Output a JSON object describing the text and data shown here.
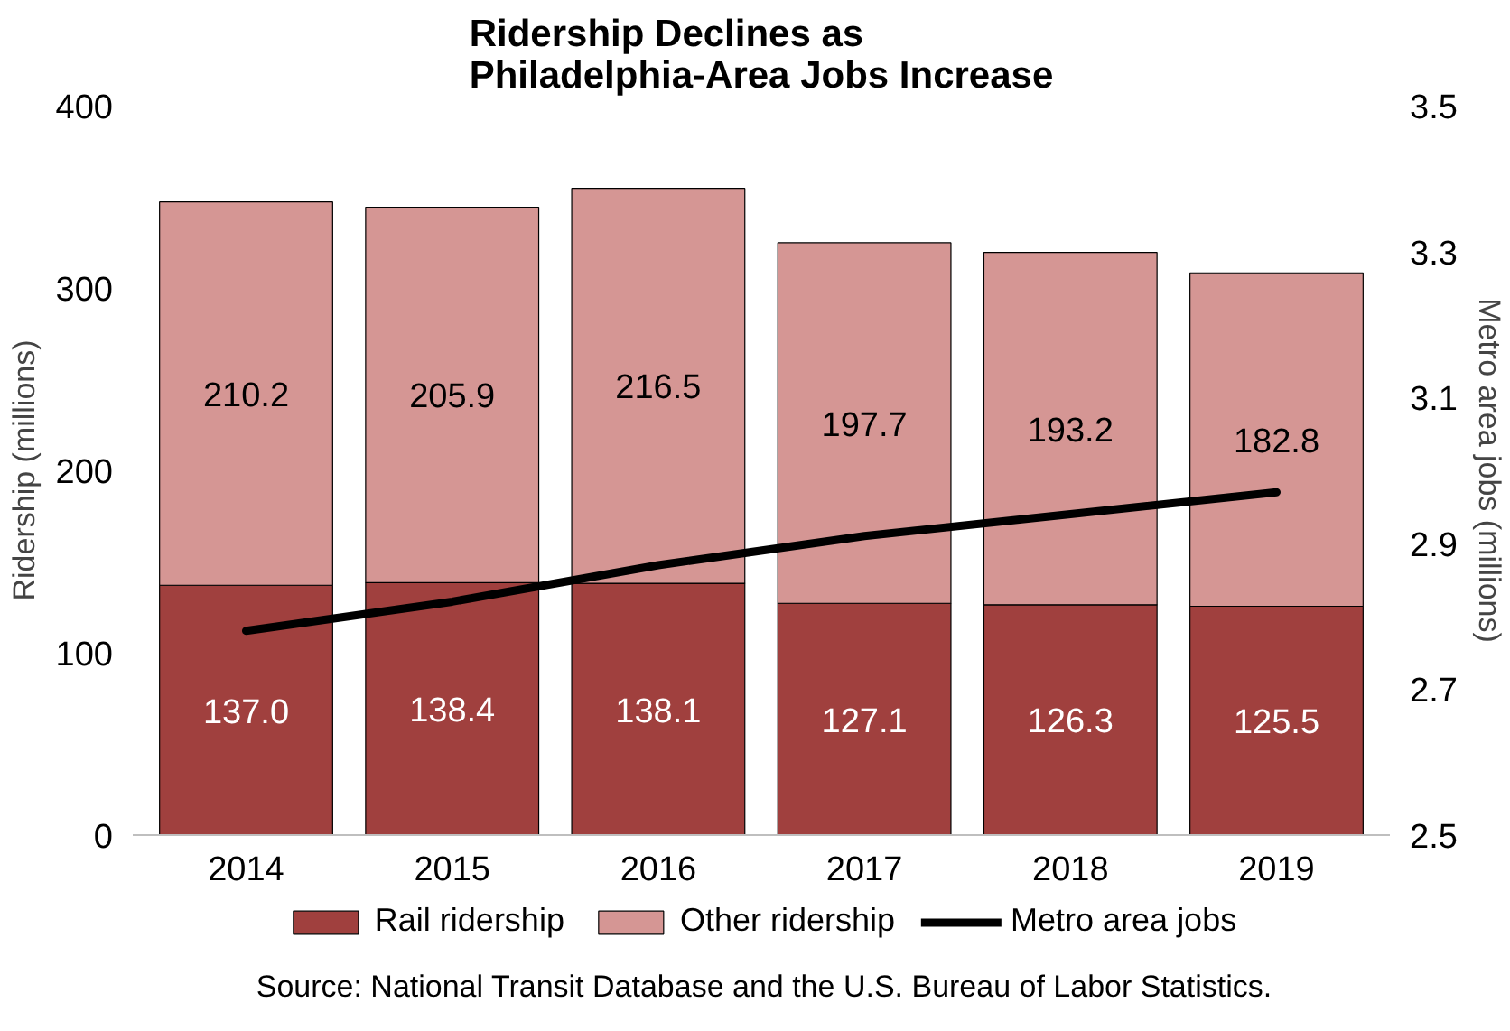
{
  "chart_data": {
    "type": "bar",
    "stacked": true,
    "title": "Ridership Declines as\nPhiladelphia-Area Jobs Increase",
    "ylabel": "Ridership (millions)",
    "y2label": "Metro area jobs (millions)",
    "categories": [
      "2014",
      "2015",
      "2016",
      "2017",
      "2018",
      "2019"
    ],
    "series": [
      {
        "name": "Rail ridership",
        "color": "#a0403e",
        "values": [
          137.0,
          138.4,
          138.1,
          127.1,
          126.3,
          125.5
        ],
        "value_labels": [
          "137.0",
          "138.4",
          "138.1",
          "127.1",
          "126.3",
          "125.5"
        ]
      },
      {
        "name": "Other ridership",
        "color": "#d59694",
        "values": [
          210.2,
          205.9,
          216.5,
          197.7,
          193.2,
          182.8
        ],
        "value_labels": [
          "210.2",
          "205.9",
          "216.5",
          "197.7",
          "193.2",
          "182.8"
        ]
      },
      {
        "name": "Metro area jobs",
        "type": "line",
        "axis": "y2",
        "color": "#000000",
        "values": [
          2.78,
          2.82,
          2.87,
          2.91,
          2.94,
          2.97
        ],
        "line_style": "solid",
        "marker": "none"
      }
    ],
    "ylim": [
      0,
      400
    ],
    "yticks": [
      0,
      100,
      200,
      300,
      400
    ],
    "y2lim": [
      2.5,
      3.5
    ],
    "y2ticks": [
      {
        "value": 2.5,
        "label": "2.5"
      },
      {
        "value": 2.7,
        "label": "2.7"
      },
      {
        "value": 2.9,
        "label": "2.9"
      },
      {
        "value": 3.1,
        "label": "3.1"
      },
      {
        "value": 3.3,
        "label": "3.3"
      },
      {
        "value": 3.5,
        "label": "3.5"
      }
    ],
    "grid": false,
    "legend": "bottom",
    "annotations": [
      "Source: National Transit Database and the U.S. Bureau of Labor Statistics."
    ]
  }
}
